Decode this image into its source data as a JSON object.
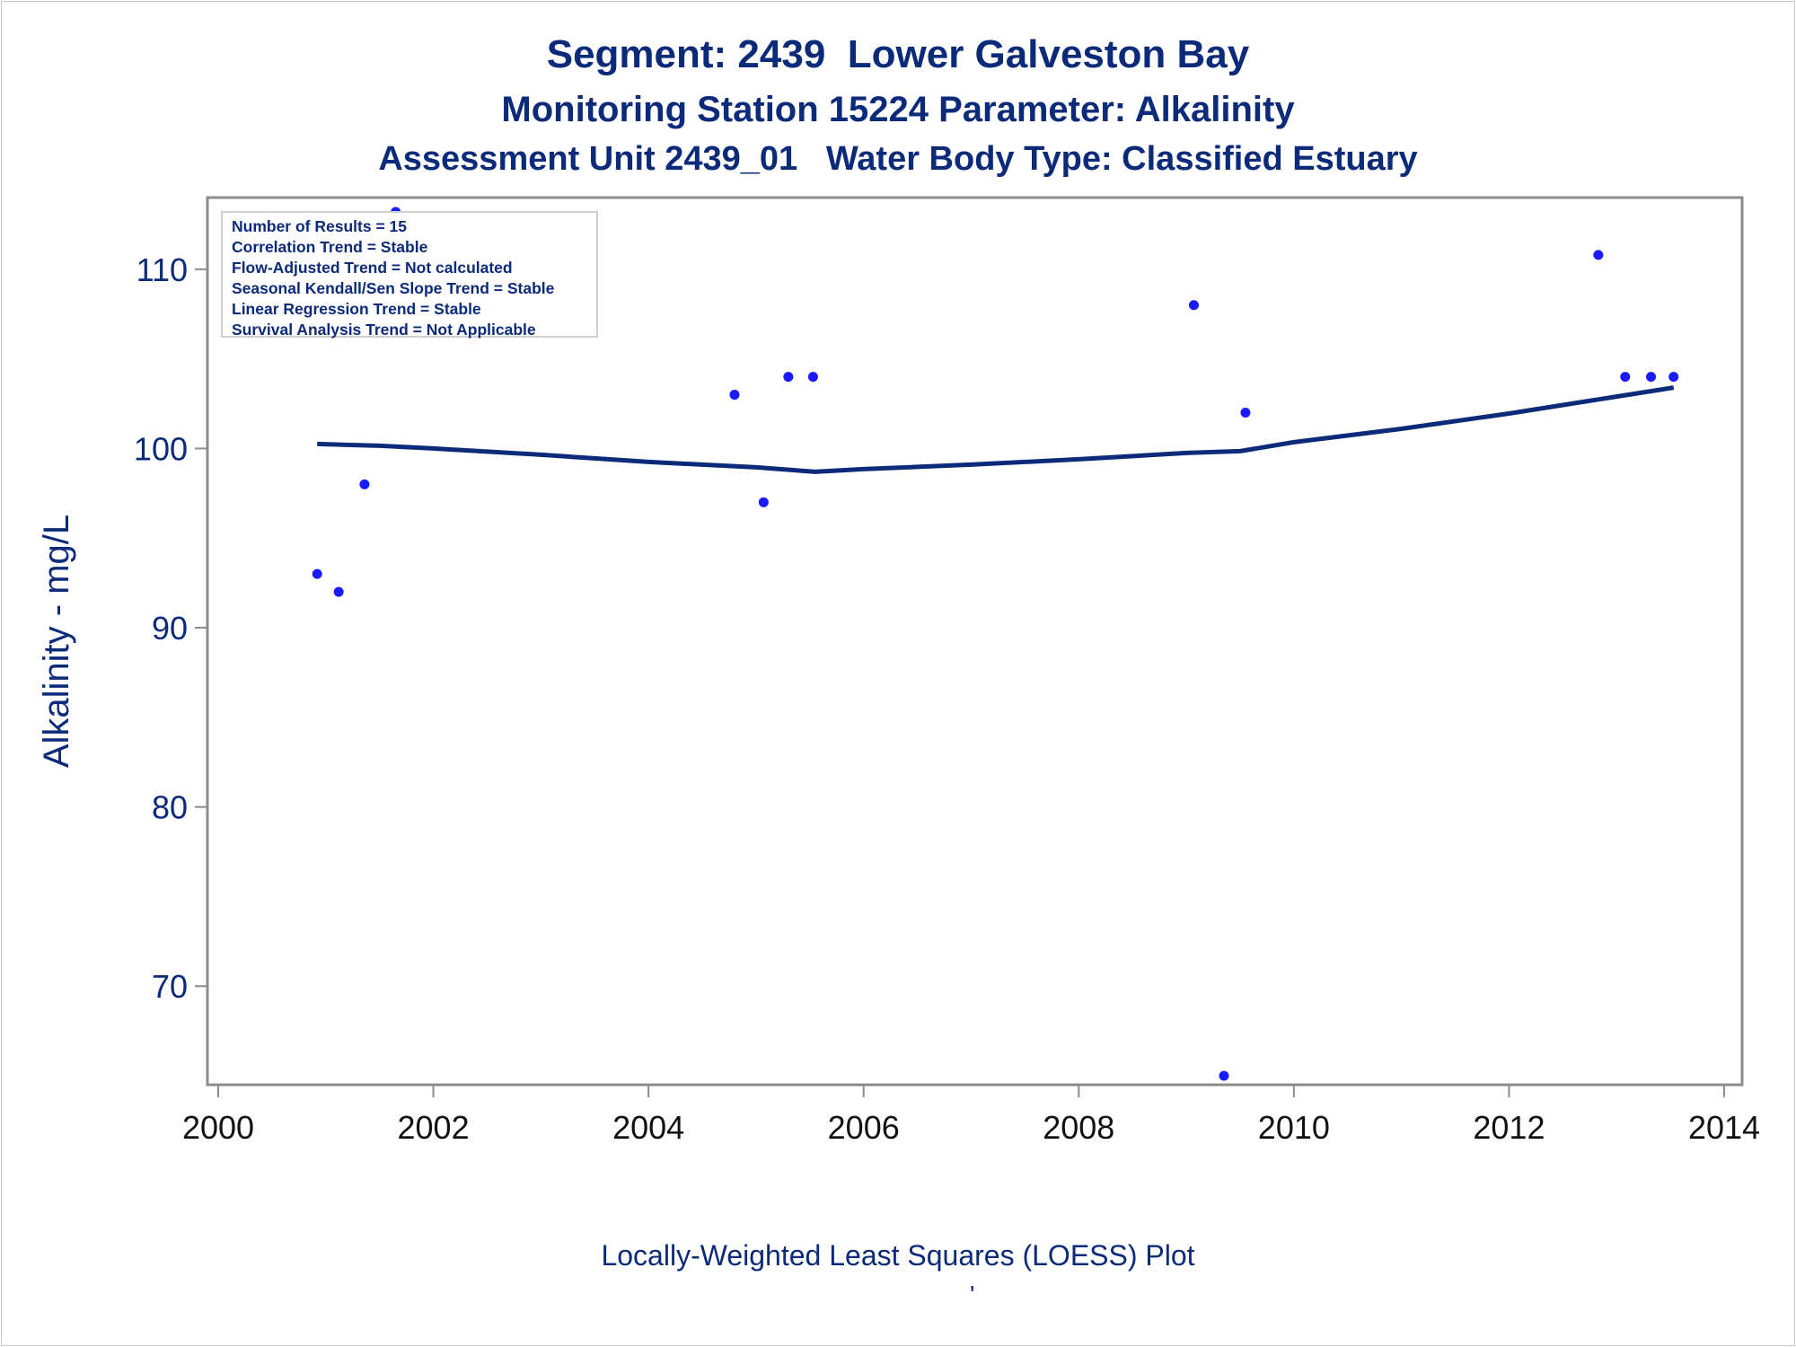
{
  "titles": {
    "line1": "Segment: 2439  Lower Galveston Bay",
    "line2": "Monitoring Station 15224 Parameter: Alkalinity",
    "line3": "Assessment Unit 2439_01   Water Body Type: Classified Estuary"
  },
  "stats_box": [
    "Number of Results = 15",
    "Correlation Trend = Stable",
    "Flow-Adjusted Trend = Not calculated",
    "Seasonal Kendall/Sen Slope Trend = Stable",
    "Linear Regression Trend = Stable",
    "Survival Analysis Trend = Not Applicable"
  ],
  "footnote": "'",
  "colors": {
    "text": "#0b2a7a",
    "points": "#1a1aff",
    "loess_line": "#0b2a7a",
    "axis": "#8c8c8c"
  },
  "chart_data": {
    "type": "scatter",
    "title": "Segment: 2439  Lower Galveston Bay",
    "xlabel": "Locally-Weighted Least Squares (LOESS) Plot",
    "ylabel": "Alkalinity - mg/L",
    "xlim": [
      2000,
      2014
    ],
    "ylim": [
      64.5,
      114
    ],
    "x_ticks": [
      2000,
      2002,
      2004,
      2006,
      2008,
      2010,
      2012,
      2014
    ],
    "y_ticks": [
      70,
      80,
      90,
      100,
      110
    ],
    "grid": false,
    "series": [
      {
        "kind": "points",
        "x": [
          2000.92,
          2001.12,
          2001.36,
          2001.65,
          2004.8,
          2005.07,
          2005.3,
          2005.53,
          2009.07,
          2009.35,
          2009.55,
          2012.83,
          2013.08,
          2013.32,
          2013.53
        ],
        "y": [
          93,
          92,
          98,
          113.2,
          103,
          97,
          104,
          104,
          108,
          65,
          102,
          110.8,
          104,
          104,
          104
        ]
      },
      {
        "kind": "line",
        "x": [
          2000.92,
          2001.5,
          2002,
          2003,
          2004,
          2005,
          2005.55,
          2006,
          2007,
          2008,
          2009,
          2009.5,
          2010,
          2011,
          2012,
          2013,
          2013.53
        ],
        "y": [
          100.25,
          100.15,
          100.0,
          99.65,
          99.25,
          98.95,
          98.7,
          98.85,
          99.1,
          99.4,
          99.75,
          99.85,
          100.35,
          101.1,
          101.95,
          102.9,
          103.4
        ]
      }
    ]
  }
}
